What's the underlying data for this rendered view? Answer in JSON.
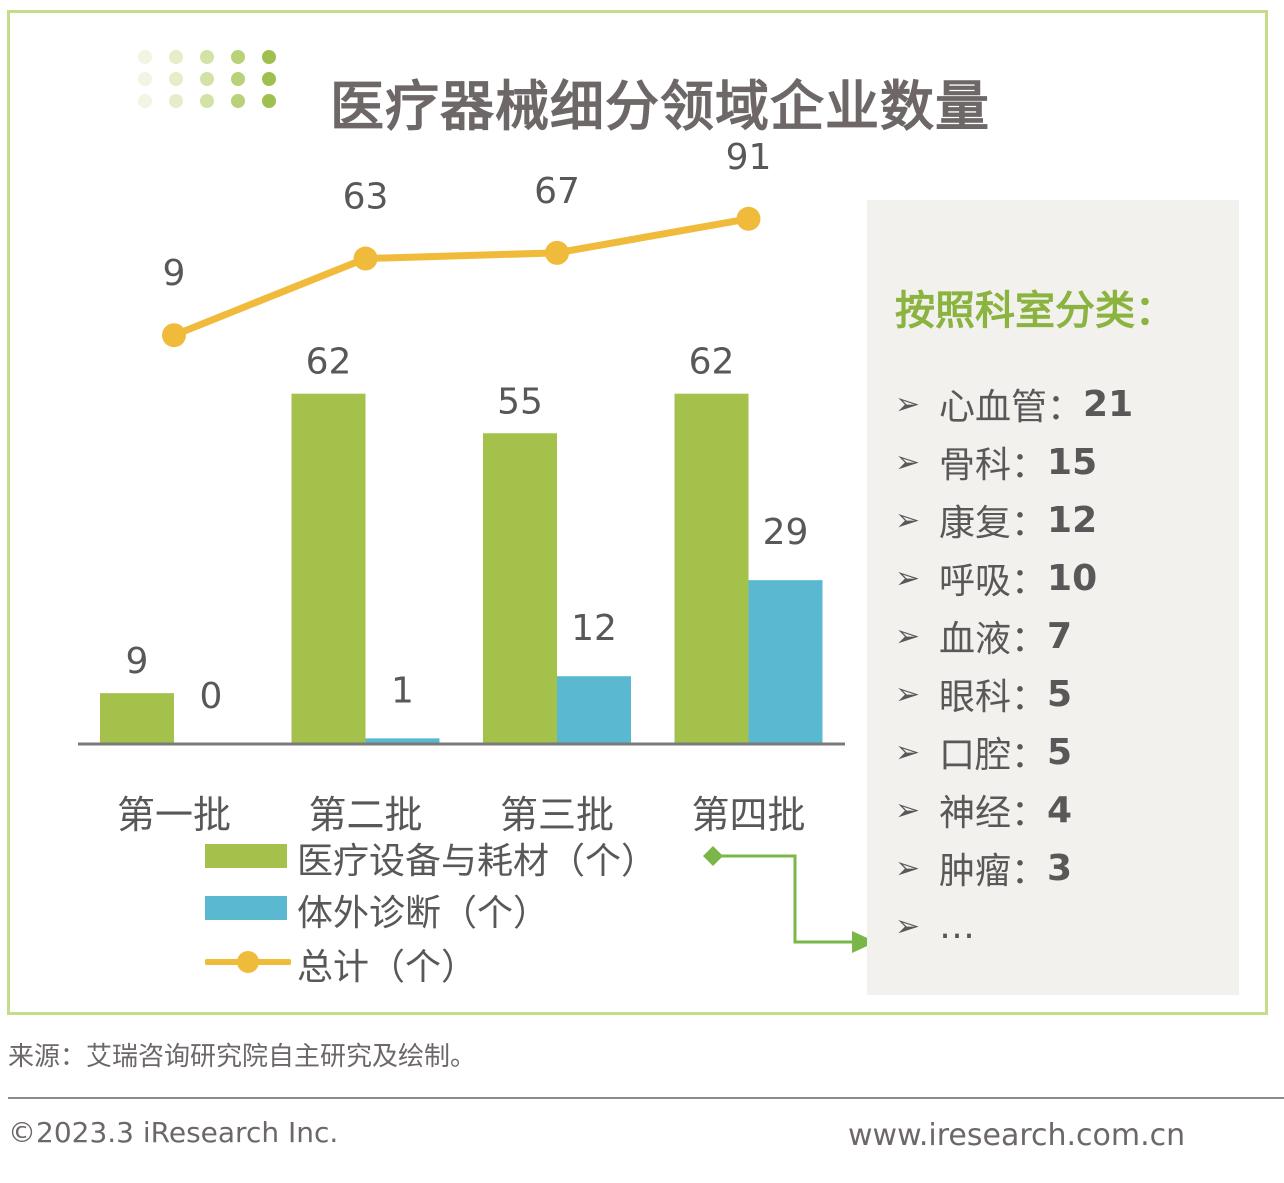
{
  "title": "医疗器械细分领域企业数量",
  "colors": {
    "bar_equipment": "#a4c14b",
    "bar_ivd": "#5bb8d1",
    "line_total": "#f0ba3a",
    "panel_title": "#8ab43f",
    "frame": "#c5dc8a",
    "connector": "#7ab648"
  },
  "chart_data": {
    "type": "bar",
    "categories": [
      "第一批",
      "第二批",
      "第三批",
      "第四批"
    ],
    "series": [
      {
        "name": "医疗设备与耗材（个）",
        "type": "bar",
        "values": [
          9,
          62,
          55,
          62
        ]
      },
      {
        "name": "体外诊断（个）",
        "type": "bar",
        "values": [
          0,
          1,
          12,
          29
        ]
      },
      {
        "name": "总计（个）",
        "type": "line",
        "values": [
          9,
          63,
          67,
          91
        ]
      }
    ],
    "title": "医疗器械细分领域企业数量",
    "xlabel": "",
    "ylabel": "",
    "grid": false,
    "legend": "bottom-left"
  },
  "legend": {
    "items": [
      {
        "label": "医疗设备与耗材（个）",
        "kind": "bar"
      },
      {
        "label": "体外诊断（个）",
        "kind": "bar"
      },
      {
        "label": "总计（个）",
        "kind": "line"
      }
    ]
  },
  "panel": {
    "title": "按照科室分类：",
    "items": [
      {
        "name": "心血管：",
        "count": "21"
      },
      {
        "name": "骨科：",
        "count": "15"
      },
      {
        "name": "康复：",
        "count": "12"
      },
      {
        "name": "呼吸：",
        "count": "10"
      },
      {
        "name": "血液：",
        "count": "7"
      },
      {
        "name": "眼科：",
        "count": "5"
      },
      {
        "name": "口腔：",
        "count": "5"
      },
      {
        "name": "神经：",
        "count": "4"
      },
      {
        "name": "肿瘤：",
        "count": "3"
      },
      {
        "name": "…",
        "count": ""
      }
    ]
  },
  "footer": {
    "source": "来源：艾瑞咨询研究院自主研究及绘制。",
    "copyright": "©2023.3 iResearch Inc.",
    "website": "www.iresearch.com.cn"
  }
}
